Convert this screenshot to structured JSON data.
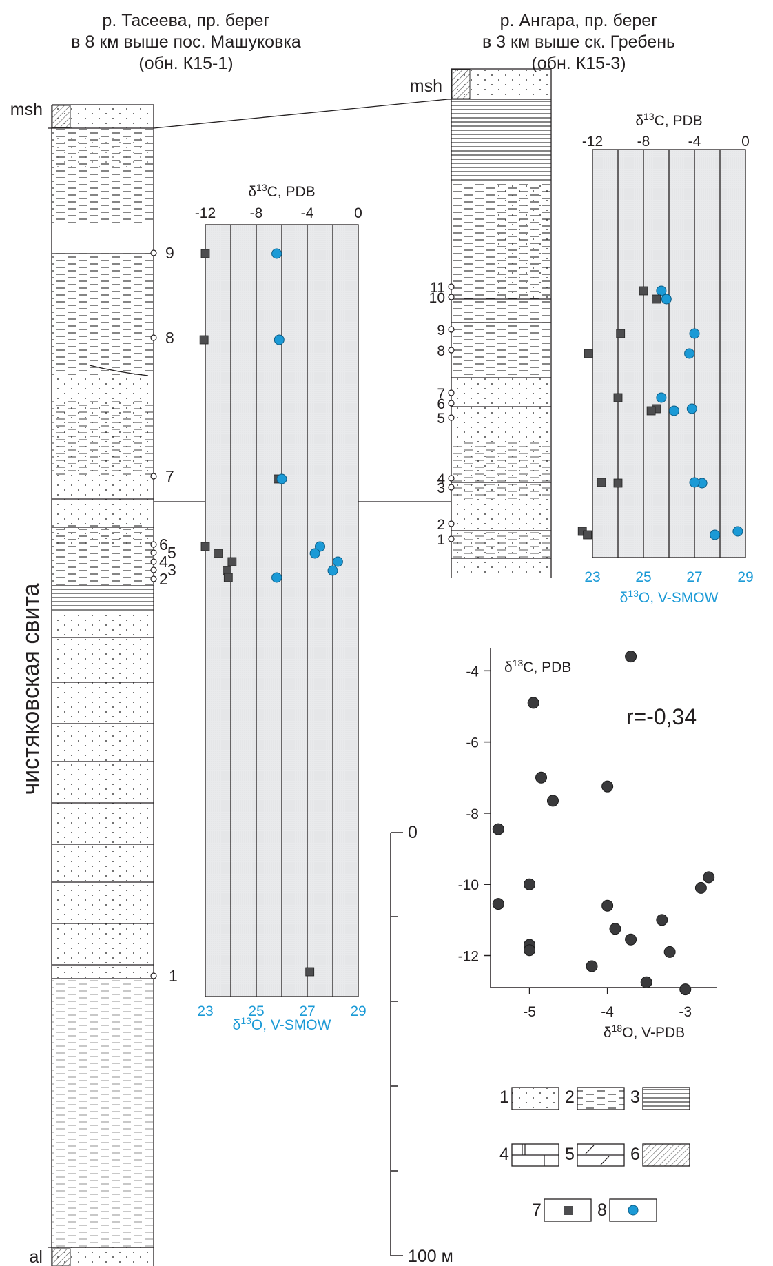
{
  "sections": [
    {
      "title_lines": [
        "р. Тасеева, пр. берег",
        "в 8 км выше пос. Машуковка",
        "(обн. К15-1)"
      ],
      "top_unit_label": "msh",
      "bottom_unit_label": "al",
      "formation_label": "чистяковская свита",
      "sample_numbers": [
        "9",
        "8",
        "7",
        "6",
        "5",
        "4",
        "3",
        "2",
        "1"
      ]
    },
    {
      "title_lines": [
        "р. Ангара, пр. берег",
        "в 3 км выше ск. Гребень",
        "(обн. К15-3)"
      ],
      "top_unit_label": "msh",
      "sample_numbers": [
        "11",
        "10",
        "9",
        "8",
        "7",
        "6",
        "5",
        "4",
        "3",
        "2",
        "1"
      ]
    }
  ],
  "isotope_panels": [
    {
      "c_axis_title": "δ13C, PDB",
      "c_ticks": [
        "-12",
        "-8",
        "-4",
        "0"
      ],
      "o_axis_title": "δ13O, V-SMOW",
      "o_ticks": [
        "23",
        "25",
        "27",
        "29"
      ],
      "samples": [
        {
          "sample": "9",
          "d13C": -12.0,
          "d18O": 25.8
        },
        {
          "sample": "8",
          "d13C": -12.1,
          "d18O": 25.9
        },
        {
          "sample": "7",
          "d13C": -6.3,
          "d18O": 26.0
        },
        {
          "sample": "6",
          "d13C": -12.0,
          "d18O": 27.5
        },
        {
          "sample": "5",
          "d13C": -11.0,
          "d18O": 27.3
        },
        {
          "sample": "4",
          "d13C": -9.9,
          "d18O": 28.2
        },
        {
          "sample": "3",
          "d13C": -10.3,
          "d18O": 28.0
        },
        {
          "sample": "2",
          "d13C": -10.2,
          "d18O": 25.8
        },
        {
          "sample": "1",
          "d13C": -3.8,
          "d18O": null
        }
      ]
    },
    {
      "c_axis_title": "δ13C, PDB",
      "c_ticks": [
        "-12",
        "-8",
        "-4",
        "0"
      ],
      "o_axis_title": "δ13O, V-SMOW",
      "o_ticks": [
        "23",
        "25",
        "27",
        "29"
      ],
      "samples": [
        {
          "sample": "11",
          "d13C": -8.0,
          "d18O": 25.7
        },
        {
          "sample": "10",
          "d13C": -7.0,
          "d18O": 25.9
        },
        {
          "sample": "9",
          "d13C": -9.8,
          "d18O": 27.0
        },
        {
          "sample": "8",
          "d13C": -12.3,
          "d18O": 26.8
        },
        {
          "sample": "7",
          "d13C": -10.0,
          "d18O": 25.7
        },
        {
          "sample": "6",
          "d13C": -7.0,
          "d18O": 26.9
        },
        {
          "sample": "5",
          "d13C": -7.4,
          "d18O": 26.2
        },
        {
          "sample": "4",
          "d13C": -10.0,
          "d18O": 27.3
        },
        {
          "sample": "3",
          "d13C": -11.3,
          "d18O": 27.0
        },
        {
          "sample": "2",
          "d13C": -12.8,
          "d18O": 28.7
        },
        {
          "sample": "1",
          "d13C": -12.4,
          "d18O": 27.8
        }
      ]
    }
  ],
  "chart_data": {
    "type": "scatter",
    "xlabel": "δ18O, V-PDB",
    "ylabel": "δ13C, PDB",
    "annotation": "r=-0,34",
    "xlim": [
      -5.5,
      -2.6
    ],
    "ylim": [
      -12.9,
      -3.8
    ],
    "x_ticks": [
      "-5",
      "-4",
      "-3"
    ],
    "y_ticks": [
      "-4",
      "-6",
      "-8",
      "-10",
      "-12"
    ],
    "points": [
      {
        "x": -3.7,
        "y": -3.6
      },
      {
        "x": -4.95,
        "y": -4.9
      },
      {
        "x": -4.85,
        "y": -7.0
      },
      {
        "x": -4.7,
        "y": -7.65
      },
      {
        "x": -4.0,
        "y": -7.25
      },
      {
        "x": -5.4,
        "y": -8.45
      },
      {
        "x": -5.0,
        "y": -10.0
      },
      {
        "x": -5.4,
        "y": -10.55
      },
      {
        "x": -4.0,
        "y": -10.6
      },
      {
        "x": -3.9,
        "y": -11.25
      },
      {
        "x": -3.7,
        "y": -11.55
      },
      {
        "x": -3.3,
        "y": -11.0
      },
      {
        "x": -3.2,
        "y": -11.9
      },
      {
        "x": -5.0,
        "y": -11.7
      },
      {
        "x": -5.0,
        "y": -11.85
      },
      {
        "x": -4.2,
        "y": -12.3
      },
      {
        "x": -3.5,
        "y": -12.75
      },
      {
        "x": -3.0,
        "y": -12.95
      },
      {
        "x": -2.8,
        "y": -10.1
      },
      {
        "x": -2.7,
        "y": -9.8
      }
    ]
  },
  "scale_bar": {
    "top_label": "0",
    "bottom_label": "100 м"
  },
  "legend": {
    "items": [
      {
        "num": "1",
        "pattern": "sandstone-dots"
      },
      {
        "num": "2",
        "pattern": "siltstone-dashes"
      },
      {
        "num": "3",
        "pattern": "mudstone-lines"
      },
      {
        "num": "4",
        "pattern": "limestone-bricks"
      },
      {
        "num": "5",
        "pattern": "marl-slashes"
      },
      {
        "num": "6",
        "pattern": "hatched"
      },
      {
        "num": "7",
        "pattern": "square-marker"
      },
      {
        "num": "8",
        "pattern": "circle-marker"
      }
    ],
    "marker_colors": {
      "carbon": "#4d4d4f",
      "oxygen": "#1b9ad6"
    }
  }
}
